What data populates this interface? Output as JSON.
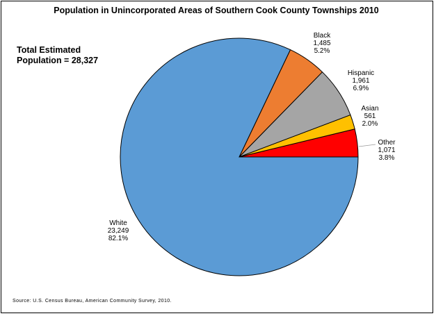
{
  "chart_data": {
    "type": "pie",
    "title": "Population in Unincorporated Areas of Southern Cook County Townships 2010",
    "annotation": {
      "line1": "Total Estimated",
      "line2": "Population = 28,327"
    },
    "source": "Source: U.S. Census Bureau, American Community Survey, 2010.",
    "start_angle_deg": 0,
    "direction": "counterclockwise",
    "slices": [
      {
        "label": "Other",
        "value": 1071,
        "value_text": "1,071",
        "percent": 3.8,
        "percent_text": "3.8%",
        "color": "#ff0000"
      },
      {
        "label": "Asian",
        "value": 561,
        "value_text": "561",
        "percent": 2.0,
        "percent_text": "2.0%",
        "color": "#ffc000"
      },
      {
        "label": "Hispanic",
        "value": 1961,
        "value_text": "1,961",
        "percent": 6.9,
        "percent_text": "6.9%",
        "color": "#a5a5a5"
      },
      {
        "label": "Black",
        "value": 1485,
        "value_text": "1,485",
        "percent": 5.2,
        "percent_text": "5.2%",
        "color": "#ed7d31"
      },
      {
        "label": "White",
        "value": 23249,
        "value_text": "23,249",
        "percent": 82.1,
        "percent_text": "82.1%",
        "color": "#5b9bd5"
      }
    ]
  }
}
